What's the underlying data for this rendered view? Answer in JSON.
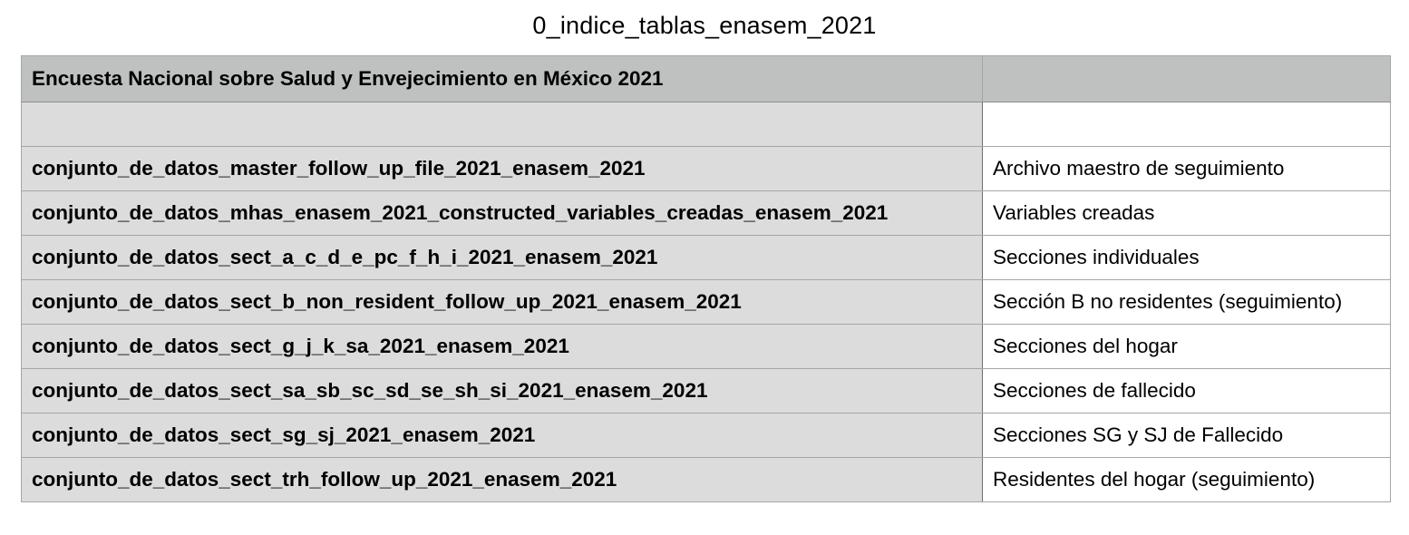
{
  "sheet": {
    "title": "0_indice_tablas_enasem_2021"
  },
  "table": {
    "header": [
      "Encuesta Nacional sobre Salud y Envejecimiento en México 2021",
      ""
    ],
    "rows": [
      [
        "",
        ""
      ],
      [
        "conjunto_de_datos_master_follow_up_file_2021_enasem_2021",
        "Archivo maestro de seguimiento"
      ],
      [
        "conjunto_de_datos_mhas_enasem_2021_constructed_variables_creadas_enasem_2021",
        "Variables creadas"
      ],
      [
        "conjunto_de_datos_sect_a_c_d_e_pc_f_h_i_2021_enasem_2021",
        "Secciones individuales"
      ],
      [
        "conjunto_de_datos_sect_b_non_resident_follow_up_2021_enasem_2021",
        "Sección B no residentes (seguimiento)"
      ],
      [
        "conjunto_de_datos_sect_g_j_k_sa_2021_enasem_2021",
        "Secciones del hogar"
      ],
      [
        "conjunto_de_datos_sect_sa_sb_sc_sd_se_sh_si_2021_enasem_2021",
        "Secciones de fallecido"
      ],
      [
        "conjunto_de_datos_sect_sg_sj_2021_enasem_2021",
        "Secciones SG y SJ de Fallecido"
      ],
      [
        "conjunto_de_datos_sect_trh_follow_up_2021_enasem_2021",
        "Residentes del hogar (seguimiento)"
      ]
    ]
  }
}
